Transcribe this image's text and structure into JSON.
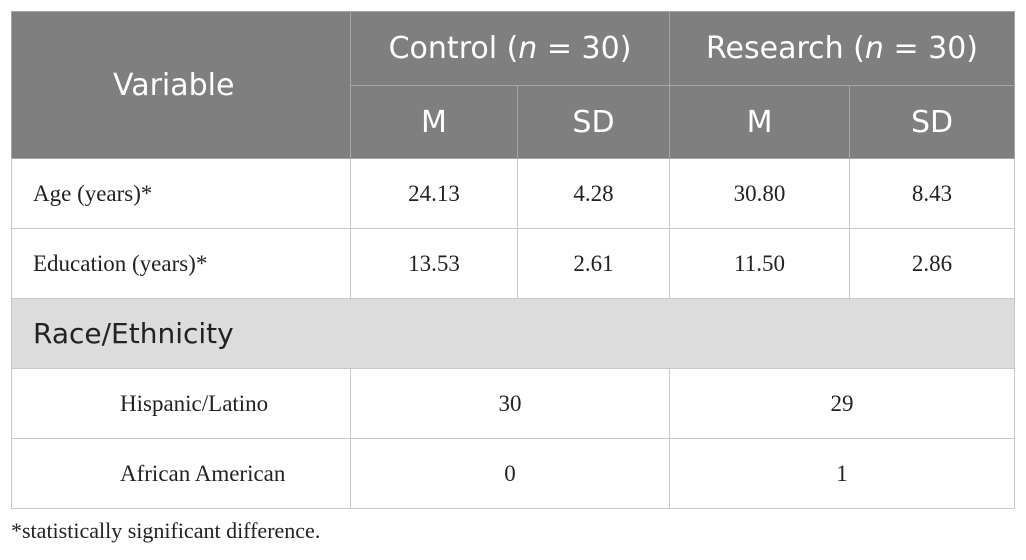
{
  "table": {
    "header": {
      "variable": "Variable",
      "groups": [
        {
          "prefix": "Control (",
          "italic": "n",
          "suffix": " = 30)"
        },
        {
          "prefix": "Research (",
          "italic": "n",
          "suffix": " = 30)"
        }
      ],
      "subheaders": [
        "M",
        "SD",
        "M",
        "SD"
      ]
    },
    "rows": [
      [
        "Age (years)*",
        "24.13",
        "4.28",
        "30.80",
        "8.43"
      ],
      [
        "Education (years)*",
        "13.53",
        "2.61",
        "11.50",
        "2.86"
      ]
    ],
    "section": "Race/Ethnicity",
    "section_rows": [
      [
        "Hispanic/Latino",
        "30",
        "29"
      ],
      [
        "African American",
        "0",
        "1"
      ]
    ]
  },
  "footnote": "*statistically significant difference."
}
